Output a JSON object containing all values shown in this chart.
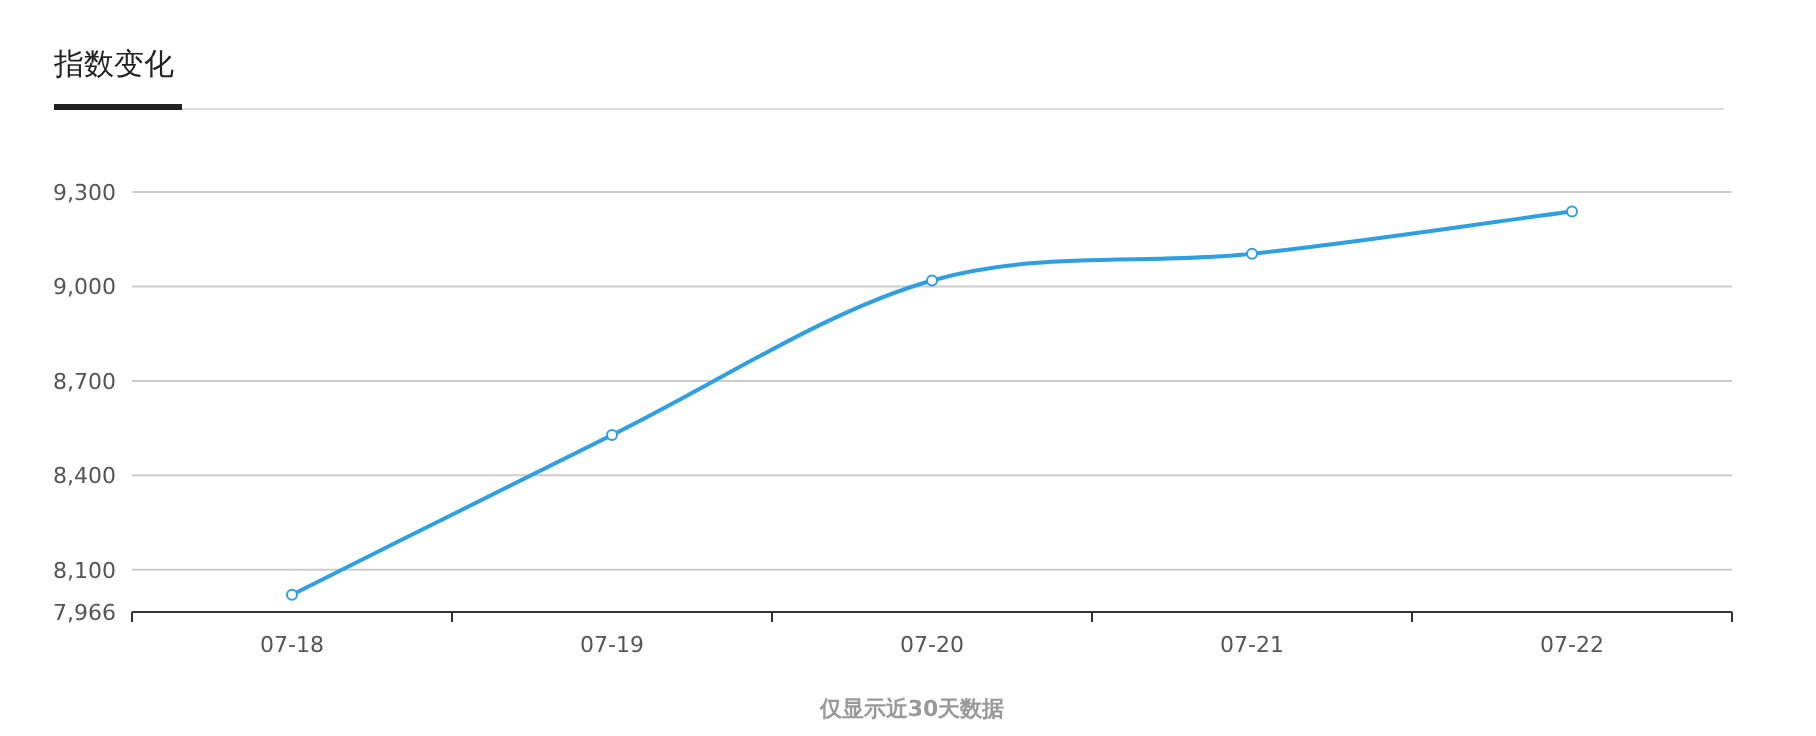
{
  "chart_data": {
    "type": "line",
    "title": "指数变化",
    "categories": [
      "07-18",
      "07-19",
      "07-20",
      "07-21",
      "07-22"
    ],
    "series": [
      {
        "color": "#2e9fe0",
        "values": [
          8021,
          8528,
          9019,
          9104,
          9238
        ]
      }
    ],
    "ylim": [
      7966,
      9300
    ],
    "yticks": [
      {
        "value": 7966,
        "label": "7,966"
      },
      {
        "value": 8100,
        "label": "8,100"
      },
      {
        "value": 8400,
        "label": "8,400"
      },
      {
        "value": 8700,
        "label": "8,700"
      },
      {
        "value": 9000,
        "label": "9,000"
      },
      {
        "value": 9300,
        "label": "9,300"
      }
    ],
    "grid": "y",
    "marker": "circle",
    "line_style": "solid",
    "annotations": [
      "仅显示近30天数据"
    ]
  }
}
